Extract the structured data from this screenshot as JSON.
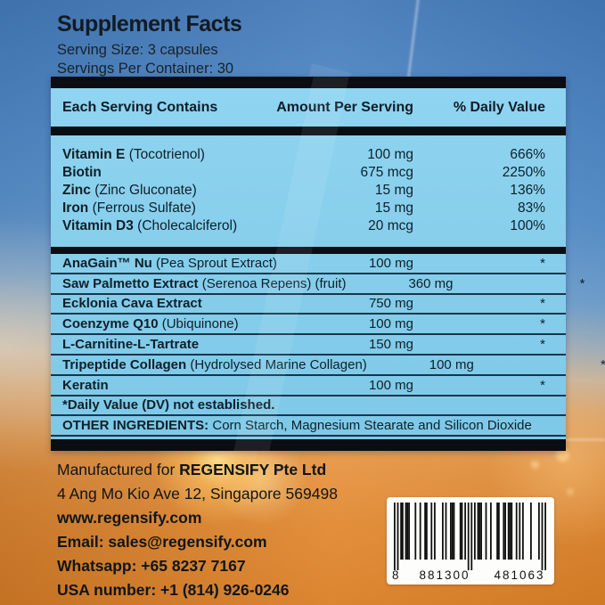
{
  "header": {
    "title": "Supplement Facts",
    "serving_size": "Serving Size: 3 capsules",
    "servings_per_container": "Servings Per Container: 30"
  },
  "table": {
    "columns": [
      "Each Serving Contains",
      "Amount Per Serving",
      "% Daily Value"
    ],
    "section1": [
      {
        "name": "Vitamin E",
        "detail": "(Tocotrienol)",
        "amount": "100 mg",
        "dv": "666%"
      },
      {
        "name": "Biotin",
        "detail": "",
        "amount": "675 mcg",
        "dv": "2250%"
      },
      {
        "name": "Zinc",
        "detail": "(Zinc Gluconate)",
        "amount": "15 mg",
        "dv": "136%"
      },
      {
        "name": "Iron",
        "detail": "(Ferrous Sulfate)",
        "amount": "15 mg",
        "dv": "83%"
      },
      {
        "name": "Vitamin D3",
        "detail": "(Cholecalciferol)",
        "amount": "20 mcg",
        "dv": "100%"
      }
    ],
    "section2": [
      {
        "name": "AnaGain™ Nu",
        "detail": "(Pea Sprout Extract)",
        "amount": "100 mg",
        "dv": "*"
      },
      {
        "name": "Saw Palmetto Extract",
        "detail": "(Serenoa Repens) (fruit)",
        "amount": "360 mg",
        "dv": "*"
      },
      {
        "name": "Ecklonia Cava Extract",
        "detail": "",
        "amount": "750 mg",
        "dv": "*"
      },
      {
        "name": "Coenzyme Q10",
        "detail": "(Ubiquinone)",
        "amount": "100 mg",
        "dv": "*"
      },
      {
        "name": "L-Carnitine-L-Tartrate",
        "detail": "",
        "amount": "150 mg",
        "dv": "*"
      },
      {
        "name": "Tripeptide Collagen",
        "detail": "(Hydrolysed Marine Collagen)",
        "amount": "100 mg",
        "dv": "*"
      },
      {
        "name": "Keratin",
        "detail": "",
        "amount": "100 mg",
        "dv": "*"
      }
    ],
    "dv_note": "*Daily Value (DV) not established.",
    "other_ingredients_label": "OTHER INGREDIENTS:",
    "other_ingredients_text": " Corn Starch, Magnesium Stearate and Silicon Dioxide"
  },
  "footer": {
    "manufactured_prefix": "Manufactured for ",
    "manufacturer": "REGENSIFY Pte Ltd",
    "address": "4 Ang Mo Kio Ave 12, Singapore 569498",
    "website": "www.regensify.com",
    "email": "Email: sales@regensify.com",
    "whatsapp": "Whatsapp: +65 8237 7167",
    "usa_number": "USA number: +1 (814) 926-0246"
  },
  "barcode": {
    "code": "8881300481063",
    "first_digit": "8",
    "group1": "881300",
    "group2": "481063"
  },
  "colors": {
    "panel_blue": "#85cdeb",
    "bar_black": "#0a0d12",
    "sky_blue": "#4d85c2",
    "sunset_orange": "#e69440",
    "text_dark": "#0e2029"
  }
}
